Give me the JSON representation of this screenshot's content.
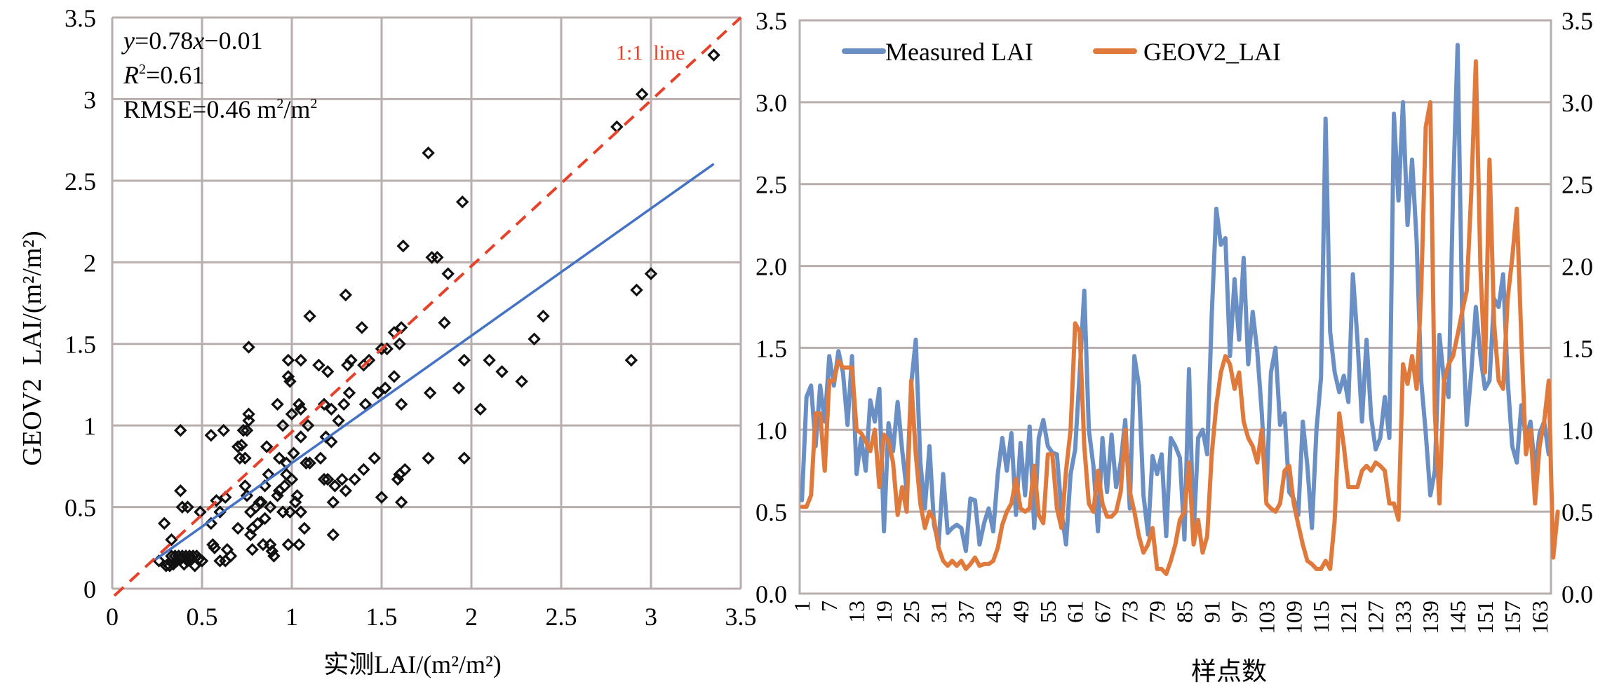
{
  "chart_data": [
    {
      "type": "scatter",
      "xlabel": "实测LAI/(m²/m²)",
      "ylabel": "GEOV2  LAI/(m²/m²)",
      "xlim": [
        0,
        3.5
      ],
      "ylim": [
        0,
        3.5
      ],
      "xticks": [
        "0",
        "0.5",
        "1",
        "1.5",
        "2",
        "2.5",
        "3",
        "3.5"
      ],
      "yticks": [
        "0",
        "0.5",
        "1",
        "1.5",
        "2",
        "2.5",
        "3",
        "3.5"
      ],
      "grid": true,
      "annotations": {
        "equation": {
          "y": "y",
          "eq1": "=0.78",
          "x": "x",
          "eq2": "−0.01"
        },
        "r2": {
          "R": "R",
          "sup": "2",
          "val": "=0.61"
        },
        "rmse": {
          "text": "RMSE=0.46 m",
          "sup1": "2",
          "mid": "/m",
          "sup2": "2"
        },
        "one_to_one_label": "1:1  line"
      },
      "regression": {
        "slope": 0.78,
        "intercept": -0.01,
        "x_range": [
          0.24,
          3.35
        ],
        "color": "#4472c4"
      },
      "identity_line": {
        "color": "#e8412a",
        "x_range": [
          0.0,
          3.5
        ]
      },
      "points": [
        [
          0.26,
          0.17
        ],
        [
          0.3,
          0.14
        ],
        [
          0.31,
          0.15
        ],
        [
          0.32,
          0.14
        ],
        [
          0.33,
          0.2
        ],
        [
          0.34,
          0.15
        ],
        [
          0.35,
          0.2
        ],
        [
          0.36,
          0.17
        ],
        [
          0.37,
          0.2
        ],
        [
          0.38,
          0.18
        ],
        [
          0.39,
          0.2
        ],
        [
          0.4,
          0.15
        ],
        [
          0.41,
          0.2
        ],
        [
          0.42,
          0.17
        ],
        [
          0.43,
          0.2
        ],
        [
          0.44,
          0.18
        ],
        [
          0.45,
          0.2
        ],
        [
          0.46,
          0.14
        ],
        [
          0.47,
          0.2
        ],
        [
          0.48,
          0.18
        ],
        [
          0.5,
          0.17
        ],
        [
          0.29,
          0.4
        ],
        [
          0.33,
          0.3
        ],
        [
          0.38,
          0.6
        ],
        [
          0.39,
          0.5
        ],
        [
          0.42,
          0.5
        ],
        [
          0.38,
          0.97
        ],
        [
          0.49,
          0.47
        ],
        [
          0.55,
          0.4
        ],
        [
          0.55,
          0.94
        ],
        [
          0.56,
          0.27
        ],
        [
          0.57,
          0.25
        ],
        [
          0.58,
          0.54
        ],
        [
          0.6,
          0.47
        ],
        [
          0.6,
          0.17
        ],
        [
          0.62,
          0.97
        ],
        [
          0.63,
          0.17
        ],
        [
          0.63,
          0.56
        ],
        [
          0.64,
          0.24
        ],
        [
          0.66,
          0.2
        ],
        [
          0.7,
          0.37
        ],
        [
          0.7,
          0.87
        ],
        [
          0.71,
          0.8
        ],
        [
          0.72,
          0.88
        ],
        [
          0.73,
          0.97
        ],
        [
          0.74,
          0.8
        ],
        [
          0.74,
          0.63
        ],
        [
          0.75,
          0.97
        ],
        [
          0.75,
          0.57
        ],
        [
          0.76,
          1.07
        ],
        [
          0.76,
          1.03
        ],
        [
          0.76,
          1.48
        ],
        [
          0.77,
          0.47
        ],
        [
          0.77,
          0.33
        ],
        [
          0.78,
          0.37
        ],
        [
          0.78,
          0.24
        ],
        [
          0.8,
          0.5
        ],
        [
          0.81,
          0.4
        ],
        [
          0.82,
          0.53
        ],
        [
          0.83,
          0.53
        ],
        [
          0.84,
          0.27
        ],
        [
          0.85,
          0.43
        ],
        [
          0.85,
          0.63
        ],
        [
          0.86,
          0.87
        ],
        [
          0.87,
          0.7
        ],
        [
          0.88,
          0.5
        ],
        [
          0.88,
          0.27
        ],
        [
          0.89,
          0.23
        ],
        [
          0.9,
          0.2
        ],
        [
          0.92,
          0.57
        ],
        [
          0.92,
          1.13
        ],
        [
          0.93,
          0.6
        ],
        [
          0.93,
          0.8
        ],
        [
          0.95,
          1.0
        ],
        [
          0.95,
          0.47
        ],
        [
          0.96,
          0.63
        ],
        [
          0.97,
          0.77
        ],
        [
          0.97,
          0.7
        ],
        [
          0.98,
          1.3
        ],
        [
          0.98,
          1.4
        ],
        [
          0.98,
          0.27
        ],
        [
          0.99,
          1.27
        ],
        [
          0.99,
          0.47
        ],
        [
          1.0,
          0.67
        ],
        [
          1.0,
          1.07
        ],
        [
          1.01,
          0.83
        ],
        [
          1.02,
          0.53
        ],
        [
          1.03,
          0.57
        ],
        [
          1.04,
          1.13
        ],
        [
          1.04,
          0.27
        ],
        [
          1.05,
          1.1
        ],
        [
          1.05,
          1.4
        ],
        [
          1.05,
          0.47
        ],
        [
          1.05,
          0.93
        ],
        [
          1.07,
          0.37
        ],
        [
          1.08,
          0.77
        ],
        [
          1.09,
          1.0
        ],
        [
          1.1,
          0.77
        ],
        [
          1.1,
          1.67
        ],
        [
          1.15,
          1.37
        ],
        [
          1.16,
          0.8
        ],
        [
          1.18,
          1.13
        ],
        [
          1.18,
          0.67
        ],
        [
          1.19,
          0.93
        ],
        [
          1.2,
          1.33
        ],
        [
          1.2,
          0.67
        ],
        [
          1.22,
          1.1
        ],
        [
          1.22,
          0.9
        ],
        [
          1.23,
          0.53
        ],
        [
          1.23,
          0.33
        ],
        [
          1.24,
          0.63
        ],
        [
          1.26,
          1.03
        ],
        [
          1.28,
          0.67
        ],
        [
          1.29,
          1.13
        ],
        [
          1.3,
          1.8
        ],
        [
          1.3,
          0.6
        ],
        [
          1.31,
          1.37
        ],
        [
          1.32,
          1.2
        ],
        [
          1.33,
          1.4
        ],
        [
          1.35,
          0.67
        ],
        [
          1.39,
          1.6
        ],
        [
          1.4,
          1.37
        ],
        [
          1.4,
          0.73
        ],
        [
          1.41,
          1.13
        ],
        [
          1.43,
          1.4
        ],
        [
          1.46,
          0.8
        ],
        [
          1.48,
          1.2
        ],
        [
          1.5,
          1.47
        ],
        [
          1.5,
          0.56
        ],
        [
          1.52,
          1.23
        ],
        [
          1.53,
          1.47
        ],
        [
          1.57,
          1.3
        ],
        [
          1.57,
          1.57
        ],
        [
          1.59,
          0.67
        ],
        [
          1.6,
          1.5
        ],
        [
          1.6,
          0.7
        ],
        [
          1.61,
          1.6
        ],
        [
          1.61,
          1.13
        ],
        [
          1.61,
          0.53
        ],
        [
          1.62,
          2.1
        ],
        [
          1.63,
          0.73
        ],
        [
          1.76,
          2.67
        ],
        [
          1.76,
          0.8
        ],
        [
          1.77,
          1.2
        ],
        [
          1.78,
          2.03
        ],
        [
          1.81,
          2.03
        ],
        [
          1.85,
          1.63
        ],
        [
          1.87,
          1.93
        ],
        [
          1.93,
          1.23
        ],
        [
          1.95,
          2.37
        ],
        [
          1.96,
          1.4
        ],
        [
          1.96,
          0.8
        ],
        [
          2.05,
          1.1
        ],
        [
          2.1,
          1.4
        ],
        [
          2.17,
          1.33
        ],
        [
          2.28,
          1.27
        ],
        [
          2.35,
          1.53
        ],
        [
          2.4,
          1.67
        ],
        [
          2.81,
          2.83
        ],
        [
          2.89,
          1.4
        ],
        [
          2.92,
          1.83
        ],
        [
          2.95,
          3.03
        ],
        [
          3.0,
          1.93
        ],
        [
          3.35,
          3.27
        ]
      ]
    },
    {
      "type": "line",
      "xlabel": "样点数",
      "ylim": [
        0,
        3.5
      ],
      "yticks": [
        "0.0",
        "0.5",
        "1.0",
        "1.5",
        "2.0",
        "2.5",
        "3.0",
        "3.5"
      ],
      "xtick_labels": [
        "1",
        "7",
        "13",
        "19",
        "25",
        "31",
        "37",
        "43",
        "49",
        "55",
        "61",
        "67",
        "73",
        "79",
        "85",
        "91",
        "97",
        "103",
        "109",
        "115",
        "121",
        "127",
        "133",
        "139",
        "145",
        "151",
        "157",
        "163"
      ],
      "grid": true,
      "legend": "top-left",
      "series": [
        {
          "name": "Measured LAI",
          "color": "#6a8fc4",
          "values": [
            0.57,
            1.2,
            1.27,
            0.9,
            1.27,
            1.05,
            1.45,
            1.27,
            1.48,
            1.35,
            1.03,
            1.45,
            0.73,
            0.95,
            0.75,
            1.18,
            1.05,
            1.25,
            0.38,
            1.04,
            0.87,
            1.17,
            0.88,
            0.63,
            1.28,
            1.55,
            0.8,
            0.52,
            0.9,
            0.42,
            0.3,
            0.73,
            0.37,
            0.4,
            0.42,
            0.4,
            0.26,
            0.58,
            0.57,
            0.3,
            0.43,
            0.52,
            0.38,
            0.73,
            0.95,
            0.75,
            0.98,
            0.48,
            0.92,
            0.6,
            1.02,
            0.4,
            0.95,
            1.06,
            0.9,
            0.86,
            0.85,
            0.5,
            0.3,
            0.73,
            0.88,
            1.35,
            1.85,
            1.0,
            0.78,
            0.38,
            0.95,
            0.62,
            0.97,
            0.65,
            0.8,
            1.06,
            0.52,
            1.45,
            1.27,
            0.6,
            0.36,
            0.84,
            0.73,
            0.85,
            0.35,
            0.95,
            0.9,
            0.83,
            0.33,
            1.37,
            0.35,
            0.95,
            1.0,
            0.85,
            1.7,
            2.35,
            2.13,
            2.17,
            1.45,
            1.92,
            1.55,
            2.05,
            1.4,
            1.72,
            1.48,
            1.1,
            0.6,
            1.35,
            1.5,
            1.03,
            1.1,
            0.62,
            0.58,
            0.48,
            1.05,
            0.78,
            0.4,
            1.0,
            1.32,
            2.9,
            1.6,
            1.35,
            1.23,
            1.33,
            1.17,
            1.95,
            1.55,
            1.05,
            1.55,
            1.08,
            0.88,
            0.95,
            1.2,
            0.95,
            2.93,
            2.4,
            3.0,
            2.25,
            2.65,
            2.15,
            1.3,
            0.98,
            0.6,
            0.75,
            1.58,
            1.3,
            1.2,
            2.45,
            3.35,
            1.7,
            1.03,
            1.35,
            1.75,
            1.45,
            1.25,
            1.3,
            1.8,
            1.75,
            1.95,
            1.3,
            0.9,
            0.8,
            1.15,
            0.95,
            1.05,
            0.75,
            0.98,
            1.05,
            0.85
          ]
        },
        {
          "name": "GEOV2_LAI",
          "color": "#e07a3c",
          "values": [
            0.53,
            0.53,
            0.6,
            1.1,
            1.1,
            0.75,
            1.3,
            1.3,
            1.42,
            1.38,
            1.38,
            1.38,
            1.0,
            0.98,
            0.93,
            0.87,
            1.0,
            0.65,
            0.97,
            0.93,
            0.8,
            0.48,
            0.65,
            0.5,
            1.3,
            0.85,
            0.55,
            0.4,
            0.5,
            0.45,
            0.28,
            0.2,
            0.17,
            0.2,
            0.17,
            0.2,
            0.15,
            0.18,
            0.22,
            0.17,
            0.18,
            0.18,
            0.2,
            0.28,
            0.42,
            0.5,
            0.55,
            0.7,
            0.52,
            0.5,
            0.52,
            0.78,
            0.48,
            0.43,
            0.85,
            0.85,
            0.52,
            0.4,
            0.75,
            1.0,
            1.65,
            1.6,
            0.9,
            0.55,
            0.5,
            0.75,
            0.55,
            0.47,
            0.47,
            0.5,
            0.62,
            1.0,
            0.62,
            0.5,
            0.35,
            0.25,
            0.3,
            0.4,
            0.15,
            0.15,
            0.12,
            0.2,
            0.3,
            0.45,
            0.5,
            0.8,
            0.3,
            0.45,
            0.25,
            0.35,
            0.85,
            1.15,
            1.35,
            1.45,
            1.4,
            1.25,
            1.35,
            1.05,
            0.95,
            0.9,
            0.8,
            1.0,
            0.55,
            0.52,
            0.5,
            0.55,
            0.75,
            0.78,
            0.55,
            0.42,
            0.3,
            0.2,
            0.18,
            0.15,
            0.15,
            0.2,
            0.15,
            0.45,
            1.1,
            0.9,
            0.65,
            0.65,
            0.65,
            0.75,
            0.78,
            0.75,
            0.8,
            0.78,
            0.75,
            0.55,
            0.55,
            0.45,
            1.4,
            1.28,
            1.45,
            1.25,
            1.85,
            2.85,
            3.0,
            1.1,
            0.55,
            1.3,
            1.4,
            1.45,
            1.58,
            1.72,
            1.85,
            2.45,
            3.25,
            2.0,
            1.35,
            2.65,
            1.65,
            1.3,
            1.25,
            1.8,
            2.05,
            2.35,
            1.55,
            0.85,
            1.0,
            0.55,
            0.9,
            1.05,
            1.3,
            0.22,
            0.5
          ]
        }
      ]
    }
  ]
}
